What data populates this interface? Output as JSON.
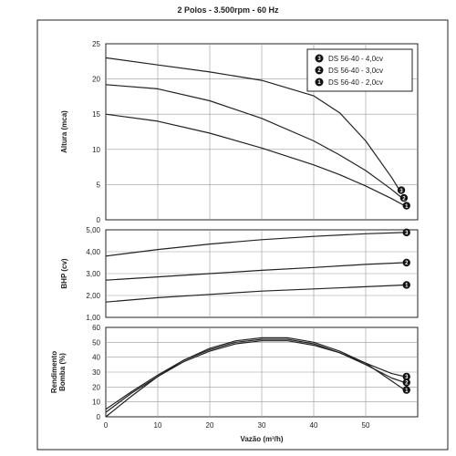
{
  "title": "2 Polos - 3.500rpm - 60 Hz",
  "legend": [
    {
      "marker": "3",
      "label": "DS 56-40 - 4,0cv"
    },
    {
      "marker": "2",
      "label": "DS 56-40 - 3,0cv"
    },
    {
      "marker": "1",
      "label": "DS 56-40 - 2,0cv"
    }
  ],
  "chart_data": [
    {
      "type": "line",
      "ylabel": "Altura (mca)",
      "xlim": [
        0,
        60
      ],
      "ylim": [
        0,
        25
      ],
      "yticks": [
        "0",
        "5",
        "10",
        "15",
        "20",
        "25"
      ],
      "grid": true,
      "legend_position": "top-right",
      "series": [
        {
          "name": "DS 56-40 - 4,0cv",
          "marker": "3",
          "x": [
            0,
            10,
            20,
            30,
            40,
            45,
            50,
            55,
            56.5
          ],
          "y": [
            23.0,
            22.0,
            21.0,
            19.8,
            17.6,
            15.2,
            11.2,
            6.0,
            4.2
          ]
        },
        {
          "name": "DS 56-40 - 3,0cv",
          "marker": "2",
          "x": [
            0,
            10,
            20,
            30,
            40,
            45,
            50,
            55,
            57
          ],
          "y": [
            19.2,
            18.6,
            16.9,
            14.4,
            11.2,
            9.2,
            7.0,
            4.3,
            3.1
          ]
        },
        {
          "name": "DS 56-40 - 2,0cv",
          "marker": "1",
          "x": [
            0,
            10,
            20,
            30,
            40,
            45,
            50,
            55,
            57.5
          ],
          "y": [
            15.0,
            14.0,
            12.3,
            10.2,
            7.8,
            6.4,
            4.8,
            3.0,
            2.0
          ]
        }
      ]
    },
    {
      "type": "line",
      "ylabel": "BHP (cv)",
      "xlim": [
        0,
        60
      ],
      "ylim": [
        1.0,
        5.0
      ],
      "yticks": [
        "1,00",
        "2,00",
        "3,00",
        "4,00",
        "5,00"
      ],
      "grid": true,
      "series": [
        {
          "name": "DS 56-40 - 4,0cv",
          "marker": "3",
          "x": [
            0,
            10,
            20,
            30,
            40,
            50,
            57.5
          ],
          "y": [
            3.8,
            4.1,
            4.35,
            4.55,
            4.7,
            4.82,
            4.88
          ]
        },
        {
          "name": "DS 56-40 - 3,0cv",
          "marker": "2",
          "x": [
            0,
            10,
            20,
            30,
            40,
            50,
            57.5
          ],
          "y": [
            2.7,
            2.85,
            3.0,
            3.15,
            3.28,
            3.42,
            3.5
          ]
        },
        {
          "name": "DS 56-40 - 2,0cv",
          "marker": "1",
          "x": [
            0,
            10,
            20,
            30,
            40,
            50,
            57.5
          ],
          "y": [
            1.7,
            1.9,
            2.05,
            2.2,
            2.3,
            2.4,
            2.48
          ]
        }
      ]
    },
    {
      "type": "line",
      "ylabel": "Rendimento Bomba (%)",
      "xlabel": "Vazão (m³/h)",
      "xlim": [
        0,
        60
      ],
      "ylim": [
        0,
        60
      ],
      "xticks": [
        "0",
        "10",
        "20",
        "30",
        "40",
        "50"
      ],
      "yticks": [
        "0",
        "10",
        "20",
        "30",
        "40",
        "50",
        "60"
      ],
      "grid": true,
      "series": [
        {
          "name": "DS 56-40 - 4,0cv",
          "marker": "3",
          "x": [
            0,
            5,
            10,
            15,
            20,
            25,
            30,
            35,
            40,
            45,
            50,
            55,
            57.5
          ],
          "y": [
            3,
            16,
            27,
            37,
            44,
            49,
            51,
            51,
            48,
            43,
            36,
            29,
            27
          ]
        },
        {
          "name": "DS 56-40 - 3,0cv",
          "marker": "2",
          "x": [
            0,
            5,
            10,
            15,
            20,
            25,
            30,
            35,
            40,
            45,
            50,
            55,
            57.5
          ],
          "y": [
            5,
            17,
            28,
            38,
            45,
            50,
            52,
            52,
            49,
            43,
            35,
            26,
            23
          ]
        },
        {
          "name": "DS 56-40 - 2,0cv",
          "marker": "1",
          "x": [
            0,
            5,
            10,
            15,
            20,
            25,
            30,
            35,
            40,
            45,
            50,
            55,
            57.5
          ],
          "y": [
            0,
            14,
            27,
            38,
            46,
            51,
            53,
            53,
            50,
            44,
            36,
            24,
            18
          ]
        }
      ]
    }
  ]
}
